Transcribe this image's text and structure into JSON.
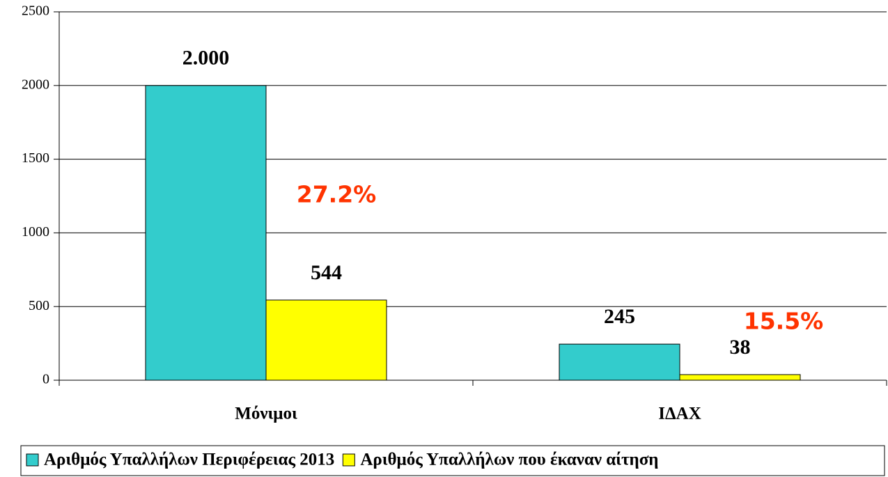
{
  "chart_data": {
    "type": "bar",
    "categories": [
      "Μόνιμοι",
      "ΙΔΑΧ"
    ],
    "series": [
      {
        "name": "Αριθμός Υπαλλήλων Περιφέρειας 2013",
        "color": "#33cccc",
        "values": [
          2000,
          245
        ],
        "value_labels": [
          "2.000",
          "245"
        ]
      },
      {
        "name": "Αριθμός Υπαλλήλων που έκαναν αίτηση",
        "color": "#ffff00",
        "values": [
          544,
          38
        ]
      }
    ],
    "annotations": [
      "27.2%",
      "15.5%"
    ],
    "ylim": [
      0,
      2500
    ],
    "yticks": [
      0,
      500,
      1000,
      1500,
      2000,
      2500
    ],
    "grid": true,
    "legend": "bottom"
  }
}
